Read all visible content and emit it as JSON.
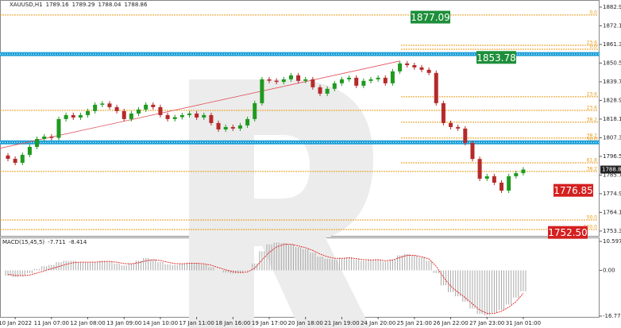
{
  "chart_data": [
    {
      "type": "candlestick",
      "title": "XAUUSD,H1",
      "ohlc": [
        1789.16,
        1789.29,
        1788.04,
        1788.86
      ],
      "categories": [
        null,
        "10 Jan 2022",
        null,
        null,
        null,
        null,
        "11 Jan 07:00",
        null,
        null,
        null,
        null,
        "12 Jan 08:00",
        null,
        null,
        null,
        null,
        "13 Jan 09:00",
        null,
        null,
        null,
        null,
        "14 Jan 10:00",
        null,
        null,
        null,
        null,
        "17 Jan 11:00",
        null,
        null,
        null,
        null,
        "18 Jan 16:00",
        null,
        null,
        null,
        null,
        "19 Jan 17:00",
        null,
        null,
        null,
        null,
        "20 Jan 18:00",
        null,
        null,
        null,
        null,
        "21 Jan 19:00",
        null,
        null,
        null,
        null,
        "24 Jan 20:00",
        null,
        null,
        null,
        null,
        "25 Jan 21:00",
        null,
        null,
        null,
        null,
        "26 Jan 22:00",
        null,
        null,
        null,
        null,
        "27 Jan 23:00",
        null,
        null,
        null,
        null,
        "31 Jan 01:00"
      ],
      "open": [
        1797.0,
        1795.1,
        1792.8,
        1797.4,
        1802.0,
        1806.6,
        1808.0,
        1807.2,
        1818.1,
        1820.4,
        1819.0,
        1820.4,
        1822.7,
        1826.4,
        1827.1,
        1825.0,
        1822.7,
        1818.1,
        1821.3,
        1823.6,
        1826.4,
        1825.0,
        1820.4,
        1818.1,
        1819.2,
        1820.4,
        1821.3,
        1819.0,
        1820.4,
        1815.8,
        1812.1,
        1813.5,
        1812.6,
        1814.4,
        1818.1,
        1827.3,
        1841.1,
        1840.3,
        1839.6,
        1841.1,
        1843.4,
        1840.2,
        1841.1,
        1836.5,
        1832.8,
        1835.6,
        1838.8,
        1841.1,
        1842.0,
        1837.4,
        1840.2,
        1841.1,
        1842.0,
        1838.8,
        1845.7,
        1850.3,
        1849.3,
        1848.0,
        1846.6,
        1844.8,
        1827.3,
        1815.8,
        1813.5,
        1812.6,
        1804.3,
        1795.0,
        1783.6,
        1785.0,
        1781.3,
        1776.7,
        1785.0,
        1786.8
      ],
      "high": [
        1798.4,
        1796.5,
        1798.8,
        1803.4,
        1808.0,
        1809.4,
        1809.4,
        1819.5,
        1821.8,
        1821.8,
        1821.8,
        1824.1,
        1827.8,
        1828.5,
        1828.5,
        1826.4,
        1824.1,
        1822.7,
        1825.0,
        1827.8,
        1827.8,
        1826.4,
        1821.8,
        1820.6,
        1821.8,
        1822.7,
        1822.7,
        1821.8,
        1821.8,
        1817.2,
        1814.9,
        1814.9,
        1815.8,
        1819.5,
        1828.7,
        1842.5,
        1842.5,
        1841.7,
        1842.5,
        1844.8,
        1844.8,
        1842.5,
        1842.5,
        1837.9,
        1837.0,
        1840.2,
        1842.5,
        1843.4,
        1843.4,
        1841.6,
        1842.5,
        1843.4,
        1843.4,
        1847.1,
        1851.7,
        1851.7,
        1850.7,
        1849.4,
        1848.0,
        1846.2,
        1828.7,
        1817.2,
        1814.9,
        1814.0,
        1805.7,
        1796.4,
        1786.4,
        1786.4,
        1782.7,
        1786.4,
        1788.2,
        1790.3
      ],
      "low": [
        1793.7,
        1791.4,
        1791.4,
        1796.0,
        1800.6,
        1805.2,
        1805.8,
        1805.8,
        1816.7,
        1817.6,
        1817.6,
        1819.0,
        1821.3,
        1825.0,
        1823.6,
        1821.3,
        1816.7,
        1816.7,
        1819.9,
        1822.2,
        1823.6,
        1819.0,
        1816.7,
        1816.7,
        1817.8,
        1819.0,
        1817.6,
        1817.6,
        1814.4,
        1810.7,
        1810.7,
        1811.2,
        1811.2,
        1813.0,
        1816.7,
        1825.9,
        1838.9,
        1838.2,
        1838.2,
        1839.7,
        1838.8,
        1838.8,
        1835.1,
        1831.4,
        1831.4,
        1834.2,
        1837.4,
        1839.7,
        1836.0,
        1836.0,
        1838.8,
        1839.7,
        1837.4,
        1837.4,
        1844.3,
        1847.9,
        1846.6,
        1845.2,
        1843.4,
        1825.9,
        1814.4,
        1812.1,
        1811.2,
        1802.9,
        1793.6,
        1782.2,
        1782.2,
        1779.9,
        1775.3,
        1775.3,
        1783.6,
        1785.4
      ],
      "close": [
        1795.1,
        1792.8,
        1797.4,
        1802.0,
        1806.6,
        1808.0,
        1807.2,
        1818.1,
        1820.4,
        1819.0,
        1820.4,
        1822.7,
        1826.4,
        1827.1,
        1825.0,
        1822.7,
        1818.1,
        1821.3,
        1823.6,
        1826.4,
        1825.0,
        1820.4,
        1818.1,
        1819.2,
        1820.4,
        1821.3,
        1819.0,
        1820.4,
        1815.8,
        1812.1,
        1813.5,
        1812.6,
        1814.4,
        1818.1,
        1827.3,
        1841.1,
        1840.3,
        1839.6,
        1841.1,
        1843.4,
        1840.2,
        1841.1,
        1836.5,
        1832.8,
        1835.6,
        1838.8,
        1841.1,
        1842.0,
        1837.4,
        1840.2,
        1841.1,
        1842.0,
        1838.8,
        1845.7,
        1850.3,
        1849.3,
        1848.0,
        1846.6,
        1844.8,
        1827.3,
        1815.8,
        1813.5,
        1812.6,
        1804.3,
        1795.0,
        1783.6,
        1785.0,
        1781.3,
        1776.7,
        1785.0,
        1786.8,
        1788.9
      ],
      "up_color": "#1f9a1f",
      "down_color": "#b52a2a",
      "ylim": [
        1750.5,
        1887.0
      ],
      "yticks": [
        {
          "value": 1882.9,
          "label": "1882.90"
        },
        {
          "value": 1872.1,
          "label": "1872.10"
        },
        {
          "value": 1861.3,
          "label": "1861.30"
        },
        {
          "value": 1850.5,
          "label": "1850.50"
        },
        {
          "value": 1839.7,
          "label": "1839.70"
        },
        {
          "value": 1828.9,
          "label": "1828.90"
        },
        {
          "value": 1818.1,
          "label": "1818.10"
        },
        {
          "value": 1807.3,
          "label": "1807.30"
        },
        {
          "value": 1796.5,
          "label": "1796.50"
        },
        {
          "value": 1785.7,
          "label": "1785.70"
        },
        {
          "value": 1774.9,
          "label": "1774.90"
        },
        {
          "value": 1764.1,
          "label": "1764.10"
        },
        {
          "value": 1753.3,
          "label": "1753.30"
        }
      ],
      "support_resistance": [
        1855.7,
        1804.6
      ],
      "band_color": "#1ea0d8",
      "trendline": {
        "x": [
          0,
          54
        ],
        "y": [
          1801.2,
          1851.7
        ],
        "color": "#e0505a"
      },
      "levels_full": [
        {
          "label": "0.0",
          "value": 1878.3
        },
        {
          "label": "23.6",
          "value": 1823.1
        },
        {
          "label": "38.2",
          "value": 1787.8
        },
        {
          "label": "50.0",
          "value": 1759.7
        },
        {
          "label": "100.0",
          "value": 1754.2
        }
      ],
      "levels_recent": [
        {
          "label": "23.6",
          "value": 1860.8
        },
        {
          "label": "0.0",
          "value": 1858.5
        },
        {
          "label": "23.6",
          "value": 1831.0
        },
        {
          "label": "38.2",
          "value": 1816.3
        },
        {
          "label": "38.2",
          "value": 1807.1
        },
        {
          "label": "50.0",
          "value": 1804.8
        },
        {
          "label": "61.8",
          "value": 1792.8
        }
      ],
      "level_color": "#e89a1a",
      "boxes": [
        {
          "value": 1877.09,
          "color": "#1d8f3a"
        },
        {
          "value": 1853.78,
          "color": "#1d8f3a"
        },
        {
          "value": 1776.85,
          "color": "#d42020"
        },
        {
          "value": 1752.5,
          "label": "1752.50",
          "color": "#d42020"
        }
      ]
    },
    {
      "type": "macd",
      "title": "MACD(15,45,5)",
      "current": [
        -7.711,
        -8.414
      ],
      "histogram": [
        -2.0,
        -2.5,
        -2.0,
        -1.0,
        0.5,
        1.5,
        2.0,
        3.0,
        3.5,
        3.5,
        3.0,
        2.8,
        3.0,
        3.5,
        3.2,
        2.5,
        1.8,
        2.5,
        3.5,
        4.5,
        4.0,
        3.0,
        2.2,
        2.0,
        2.5,
        2.8,
        2.5,
        2.2,
        1.2,
        0.0,
        -0.8,
        -1.2,
        -1.0,
        -0.2,
        2.5,
        7.0,
        9.5,
        10.2,
        10.0,
        9.5,
        8.5,
        7.8,
        6.5,
        5.0,
        4.2,
        4.0,
        4.5,
        4.8,
        4.0,
        3.5,
        3.8,
        4.0,
        3.2,
        4.0,
        5.5,
        6.0,
        5.5,
        4.8,
        3.5,
        -1.0,
        -5.5,
        -8.0,
        -9.5,
        -11.5,
        -14.0,
        -16.0,
        -16.5,
        -15.5,
        -14.5,
        -12.5,
        -10.0,
        -7.7
      ],
      "signal": [
        -1.5,
        -1.8,
        -2.0,
        -1.7,
        -1.0,
        -0.2,
        0.6,
        1.4,
        2.2,
        2.8,
        3.0,
        3.0,
        3.0,
        3.2,
        3.3,
        3.0,
        2.5,
        2.4,
        2.8,
        3.5,
        3.9,
        3.6,
        3.0,
        2.5,
        2.4,
        2.6,
        2.6,
        2.4,
        1.9,
        1.0,
        0.2,
        -0.5,
        -0.8,
        -0.6,
        0.8,
        3.8,
        6.6,
        8.6,
        9.5,
        9.6,
        9.0,
        8.3,
        7.3,
        6.0,
        5.0,
        4.4,
        4.4,
        4.6,
        4.3,
        3.9,
        3.8,
        3.9,
        3.5,
        3.8,
        4.7,
        5.5,
        5.5,
        5.0,
        4.2,
        1.5,
        -2.5,
        -5.8,
        -8.0,
        -10.0,
        -12.3,
        -14.5,
        -15.8,
        -15.8,
        -15.0,
        -13.5,
        -11.5,
        -8.4
      ],
      "histogram_color": "#a8a8a8",
      "signal_color": "#e03030",
      "ylim": [
        -17.06,
        12.06
      ],
      "yticks": [
        10.597,
        {
          "value": 0,
          "label": "0.00"
        },
        -16.775
      ]
    }
  ]
}
